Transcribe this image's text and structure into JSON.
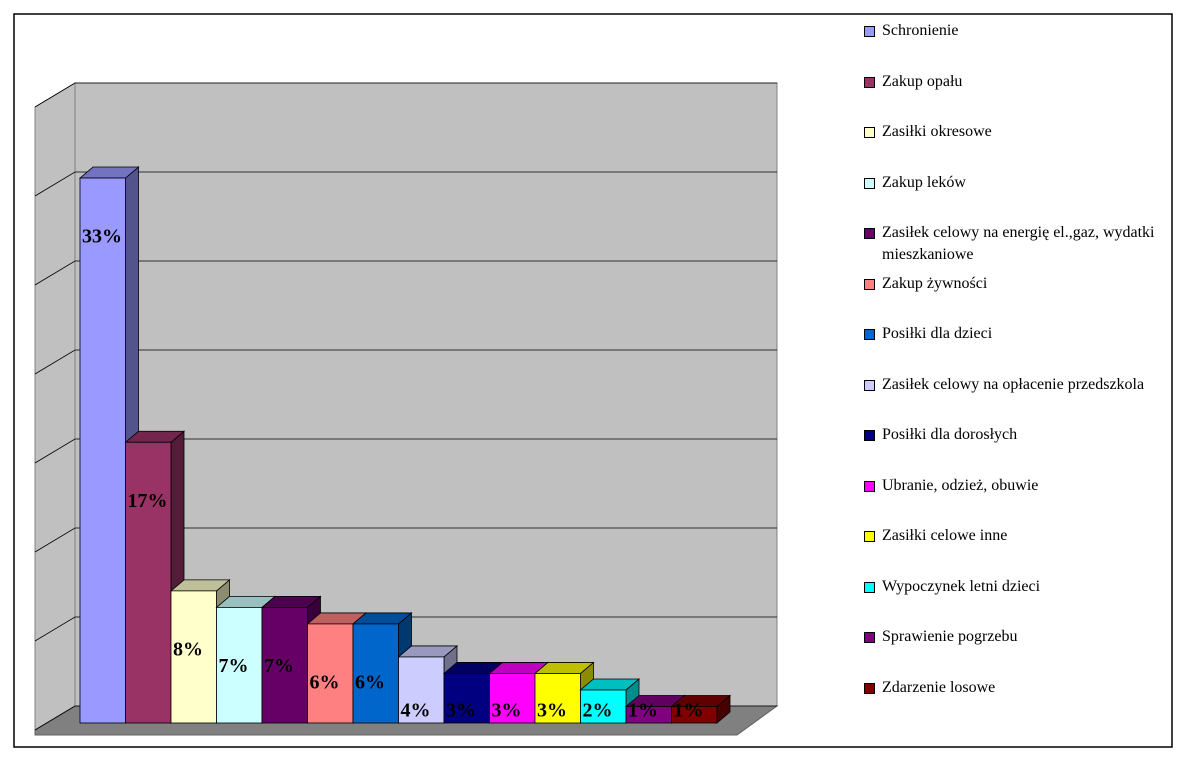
{
  "chart_data": {
    "type": "bar3d",
    "categories": [
      "Schronienie",
      "Zakup opału",
      "Zasiłki okresowe",
      "Zakup leków",
      "Zasiłek celowy na energię el.,gaz, wydatki mieszkaniowe",
      "Zakup żywności",
      "Posiłki dla dzieci",
      "Zasiłek celowy na opłacenie przedszkola",
      "Posiłki dla dorosłych",
      "Ubranie, odzież, obuwie",
      "Zasiłki celowe inne",
      "Wypoczynek letni dzieci",
      "Sprawienie pogrzebu",
      "Zdarzenie losowe"
    ],
    "values": [
      33,
      17,
      8,
      7,
      7,
      6,
      6,
      4,
      3,
      3,
      3,
      2,
      1,
      1
    ],
    "value_labels": [
      "33%",
      "17%",
      "8%",
      "7%",
      "7%",
      "6%",
      "6%",
      "4%",
      "3%",
      "3%",
      "3%",
      "2%",
      "1%",
      "1%"
    ],
    "colors": [
      "#9999ff",
      "#993366",
      "#ffffcc",
      "#ccffff",
      "#660066",
      "#ff8080",
      "#0066cc",
      "#ccccff",
      "#000080",
      "#ff00ff",
      "#ffff00",
      "#00ffff",
      "#800080",
      "#800000"
    ],
    "ylim": [
      0,
      35
    ],
    "yticks": [
      0,
      5,
      10,
      15,
      20,
      25,
      30,
      35
    ],
    "grid": true,
    "legend": "right"
  }
}
